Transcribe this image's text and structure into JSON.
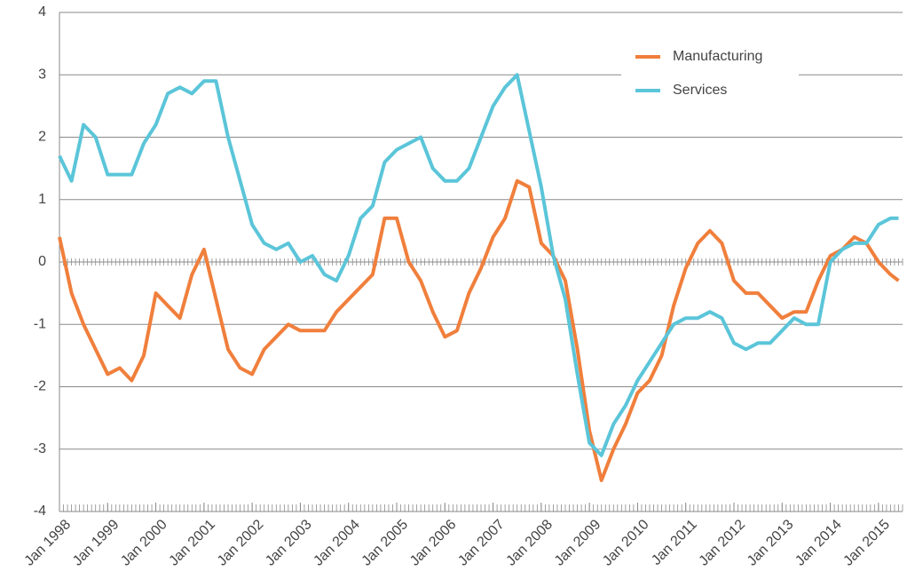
{
  "chart_data": {
    "type": "line",
    "x": [
      "1998-01",
      "1998-04",
      "1998-07",
      "1998-10",
      "1999-01",
      "1999-04",
      "1999-07",
      "1999-10",
      "2000-01",
      "2000-04",
      "2000-07",
      "2000-10",
      "2001-01",
      "2001-04",
      "2001-07",
      "2001-10",
      "2002-01",
      "2002-04",
      "2002-07",
      "2002-10",
      "2003-01",
      "2003-04",
      "2003-07",
      "2003-10",
      "2004-01",
      "2004-04",
      "2004-07",
      "2004-10",
      "2005-01",
      "2005-04",
      "2005-07",
      "2005-10",
      "2006-01",
      "2006-04",
      "2006-07",
      "2006-10",
      "2007-01",
      "2007-04",
      "2007-07",
      "2007-10",
      "2008-01",
      "2008-04",
      "2008-07",
      "2008-10",
      "2009-01",
      "2009-04",
      "2009-07",
      "2009-10",
      "2010-01",
      "2010-04",
      "2010-07",
      "2010-10",
      "2011-01",
      "2011-04",
      "2011-07",
      "2011-10",
      "2012-01",
      "2012-04",
      "2012-07",
      "2012-10",
      "2013-01",
      "2013-04",
      "2013-07",
      "2013-10",
      "2014-01",
      "2014-04",
      "2014-07",
      "2014-10",
      "2015-01",
      "2015-04",
      "2015-06"
    ],
    "series": [
      {
        "name": "Manufacturing",
        "color": "#f07f3c",
        "values": [
          0.4,
          -0.5,
          -1.0,
          -1.4,
          -1.8,
          -1.7,
          -1.9,
          -1.5,
          -0.5,
          -0.7,
          -0.9,
          -0.2,
          0.2,
          -0.6,
          -1.4,
          -1.7,
          -1.8,
          -1.4,
          -1.2,
          -1.0,
          -1.1,
          -1.1,
          -1.1,
          -0.8,
          -0.6,
          -0.4,
          -0.2,
          0.7,
          0.7,
          0.0,
          -0.3,
          -0.8,
          -1.2,
          -1.1,
          -0.5,
          -0.1,
          0.4,
          0.7,
          1.3,
          1.2,
          0.3,
          0.1,
          -0.3,
          -1.4,
          -2.7,
          -3.5,
          -3.0,
          -2.6,
          -2.1,
          -1.9,
          -1.5,
          -0.7,
          -0.1,
          0.3,
          0.5,
          0.3,
          -0.3,
          -0.5,
          -0.5,
          -0.7,
          -0.9,
          -0.8,
          -0.8,
          -0.3,
          0.1,
          0.2,
          0.4,
          0.3,
          0.0,
          -0.2,
          -0.3
        ]
      },
      {
        "name": "Services",
        "color": "#5bc5d9",
        "values": [
          1.7,
          1.3,
          2.2,
          2.0,
          1.4,
          1.4,
          1.4,
          1.9,
          2.2,
          2.7,
          2.8,
          2.7,
          2.9,
          2.9,
          2.0,
          1.3,
          0.6,
          0.3,
          0.2,
          0.3,
          0.0,
          0.1,
          -0.2,
          -0.3,
          0.1,
          0.7,
          0.9,
          1.6,
          1.8,
          1.9,
          2.0,
          1.5,
          1.3,
          1.3,
          1.5,
          2.0,
          2.5,
          2.8,
          3.0,
          2.1,
          1.2,
          0.1,
          -0.6,
          -1.8,
          -2.9,
          -3.1,
          -2.6,
          -2.3,
          -1.9,
          -1.6,
          -1.3,
          -1.0,
          -0.9,
          -0.9,
          -0.8,
          -0.9,
          -1.3,
          -1.4,
          -1.3,
          -1.3,
          -1.1,
          -0.9,
          -1.0,
          -1.0,
          0.0,
          0.2,
          0.3,
          0.3,
          0.6,
          0.7,
          0.7
        ]
      }
    ],
    "xlim": [
      "1998-01",
      "2015-07"
    ],
    "xticks": [
      {
        "value": "1998-01",
        "label": "Jan 1998"
      },
      {
        "value": "1999-01",
        "label": "Jan 1999"
      },
      {
        "value": "2000-01",
        "label": "Jan 2000"
      },
      {
        "value": "2001-01",
        "label": "Jan 2001"
      },
      {
        "value": "2002-01",
        "label": "Jan 2002"
      },
      {
        "value": "2003-01",
        "label": "Jan 2003"
      },
      {
        "value": "2004-01",
        "label": "Jan 2004"
      },
      {
        "value": "2005-01",
        "label": "Jan 2005"
      },
      {
        "value": "2006-01",
        "label": "Jan 2006"
      },
      {
        "value": "2007-01",
        "label": "Jan 2007"
      },
      {
        "value": "2008-01",
        "label": "Jan 2008"
      },
      {
        "value": "2009-01",
        "label": "Jan 2009"
      },
      {
        "value": "2010-01",
        "label": "Jan 2010"
      },
      {
        "value": "2011-01",
        "label": "Jan 2011"
      },
      {
        "value": "2012-01",
        "label": "Jan 2012"
      },
      {
        "value": "2013-01",
        "label": "Jan 2013"
      },
      {
        "value": "2014-01",
        "label": "Jan 2014"
      },
      {
        "value": "2015-01",
        "label": "Jan 2015"
      }
    ],
    "ylim": [
      -4,
      4
    ],
    "yticks": [
      -4,
      -3,
      -2,
      -1,
      0,
      1,
      2,
      3,
      4
    ],
    "grid": true,
    "legend": "upper right"
  }
}
